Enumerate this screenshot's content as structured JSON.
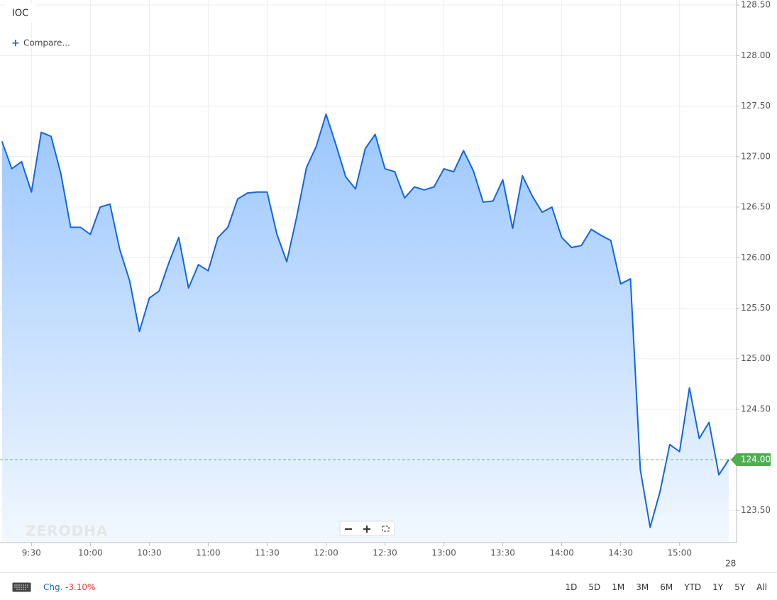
{
  "chart_data": {
    "type": "line",
    "area": true,
    "title": "IOC",
    "color": "#1565e0",
    "x": [
      "9:15",
      "9:20",
      "9:25",
      "9:30",
      "9:35",
      "9:40",
      "9:45",
      "9:50",
      "9:55",
      "10:00",
      "10:05",
      "10:10",
      "10:15",
      "10:20",
      "10:25",
      "10:30",
      "10:35",
      "10:40",
      "10:45",
      "10:50",
      "10:55",
      "11:00",
      "11:05",
      "11:10",
      "11:15",
      "11:20",
      "11:25",
      "11:30",
      "11:35",
      "11:40",
      "11:45",
      "11:50",
      "11:55",
      "12:00",
      "12:05",
      "12:10",
      "12:15",
      "12:20",
      "12:25",
      "12:30",
      "12:35",
      "12:40",
      "12:45",
      "12:50",
      "12:55",
      "13:00",
      "13:05",
      "13:10",
      "13:15",
      "13:20",
      "13:25",
      "13:30",
      "13:35",
      "13:40",
      "13:45",
      "13:50",
      "13:55",
      "14:00",
      "14:05",
      "14:10",
      "14:15",
      "14:20",
      "14:25",
      "14:30",
      "14:35",
      "14:40",
      "14:45",
      "14:50",
      "14:55",
      "15:00",
      "15:05",
      "15:10",
      "15:15",
      "15:20",
      "15:25"
    ],
    "values": [
      127.15,
      126.88,
      126.95,
      126.65,
      127.24,
      127.2,
      126.83,
      126.3,
      126.3,
      126.23,
      126.5,
      126.53,
      126.08,
      125.77,
      125.27,
      125.6,
      125.67,
      125.95,
      126.2,
      125.7,
      125.93,
      125.87,
      126.2,
      126.3,
      126.58,
      126.64,
      126.65,
      126.65,
      126.23,
      125.96,
      126.4,
      126.89,
      127.1,
      127.42,
      127.12,
      126.8,
      126.68,
      127.08,
      127.22,
      126.88,
      126.85,
      126.59,
      126.7,
      126.67,
      126.7,
      126.88,
      126.85,
      127.06,
      126.86,
      126.55,
      126.56,
      126.77,
      126.29,
      126.81,
      126.61,
      126.45,
      126.5,
      126.2,
      126.1,
      126.12,
      126.28,
      126.22,
      126.17,
      125.74,
      125.79,
      123.9,
      123.33,
      123.68,
      124.15,
      124.08,
      124.71,
      124.21,
      124.37,
      123.85,
      124.0
    ],
    "xlim": [
      "9:14",
      "15:29"
    ],
    "xticks": [
      "9:30",
      "10:00",
      "10:30",
      "11:00",
      "11:30",
      "12:00",
      "12:30",
      "13:00",
      "13:30",
      "14:00",
      "14:30",
      "15:00"
    ],
    "ylim": [
      123.18,
      128.55
    ],
    "yticks": [
      {
        "value": 123.5,
        "label": "123.50"
      },
      {
        "value": 124,
        "label": "124.00"
      },
      {
        "value": 124.5,
        "label": "124.50"
      },
      {
        "value": 125,
        "label": "125.00"
      },
      {
        "value": 125.5,
        "label": "125.50"
      },
      {
        "value": 126,
        "label": "126.00"
      },
      {
        "value": 126.5,
        "label": "126.50"
      },
      {
        "value": 127,
        "label": "127.00"
      },
      {
        "value": 127.5,
        "label": "127.50"
      },
      {
        "value": 128,
        "label": "128.00"
      },
      {
        "value": 128.5,
        "label": "128.50"
      }
    ],
    "last_price": {
      "value": 124,
      "label": "124.00"
    },
    "grid": true
  },
  "ui": {
    "compare": "Compare...",
    "watermark": "ZERODHA",
    "date_label": "28",
    "change_label": "Chg.",
    "change_value": "-3.10%",
    "ranges": [
      "1D",
      "5D",
      "1M",
      "3M",
      "6M",
      "YTD",
      "1Y",
      "5Y",
      "All"
    ]
  }
}
